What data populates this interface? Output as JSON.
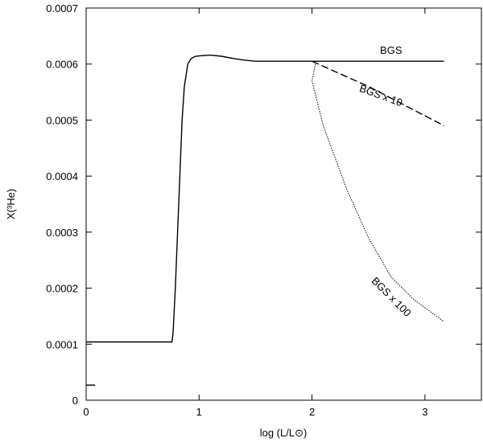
{
  "chart_data": {
    "type": "line",
    "title": "",
    "xlabel": "log (L/L⊙)",
    "ylabel": "X(³He)",
    "xlim": [
      0,
      3.5
    ],
    "ylim": [
      0,
      0.0007
    ],
    "xticks": [
      0,
      1,
      2,
      3
    ],
    "xtick_labels": [
      "0",
      "1",
      "2",
      "3"
    ],
    "yticks": [
      0,
      0.0001,
      0.0002,
      0.0003,
      0.0004,
      0.0005,
      0.0006,
      0.0007
    ],
    "ytick_labels": [
      "0",
      "0.0001",
      "0.0002",
      "0.0003",
      "0.0004",
      "0.0005",
      "0.0006",
      "0.0007"
    ],
    "grid": false,
    "series": [
      {
        "name": "BGS",
        "style": "solid",
        "x": [
          0,
          0.76,
          0.77,
          0.79,
          0.81,
          0.83,
          0.85,
          0.87,
          0.9,
          0.93,
          0.97,
          1.02,
          1.1,
          1.2,
          1.3,
          1.4,
          1.5,
          1.6,
          1.7,
          1.8,
          1.9,
          2.0,
          2.5,
          3.17
        ],
        "values": [
          0.000104,
          0.000104,
          0.00012,
          0.0002,
          0.0003,
          0.0004,
          0.0005,
          0.00056,
          0.0006,
          0.00061,
          0.000614,
          0.000615,
          0.000616,
          0.000614,
          0.00061,
          0.000607,
          0.000605,
          0.000605,
          0.000605,
          0.000605,
          0.000605,
          0.000605,
          0.000605,
          0.000605
        ]
      },
      {
        "name": "BGS x 10",
        "style": "dashed",
        "x": [
          2.0,
          2.5,
          3.17
        ],
        "values": [
          0.000605,
          0.00056,
          0.00049
        ]
      },
      {
        "name": "BGS x 100",
        "style": "dotted",
        "x": [
          2.03,
          2.0,
          2.1,
          2.3,
          2.5,
          2.7,
          2.9,
          3.17
        ],
        "values": [
          0.0006,
          0.00057,
          0.00049,
          0.00038,
          0.00029,
          0.00022,
          0.00018,
          0.00014
        ]
      },
      {
        "name": "",
        "style": "solid",
        "x": [
          0,
          0.08
        ],
        "values": [
          2.7e-05,
          2.7e-05
        ]
      }
    ],
    "annotations": [
      {
        "text": "BGS",
        "x": 2.7,
        "y": 0.000618,
        "rotate": 0
      },
      {
        "text": "BGS x 10",
        "x": 2.6,
        "y": 0.000538,
        "rotate": 20
      },
      {
        "text": "BGS x 100",
        "x": 2.68,
        "y": 0.00018,
        "rotate": 45
      }
    ]
  }
}
